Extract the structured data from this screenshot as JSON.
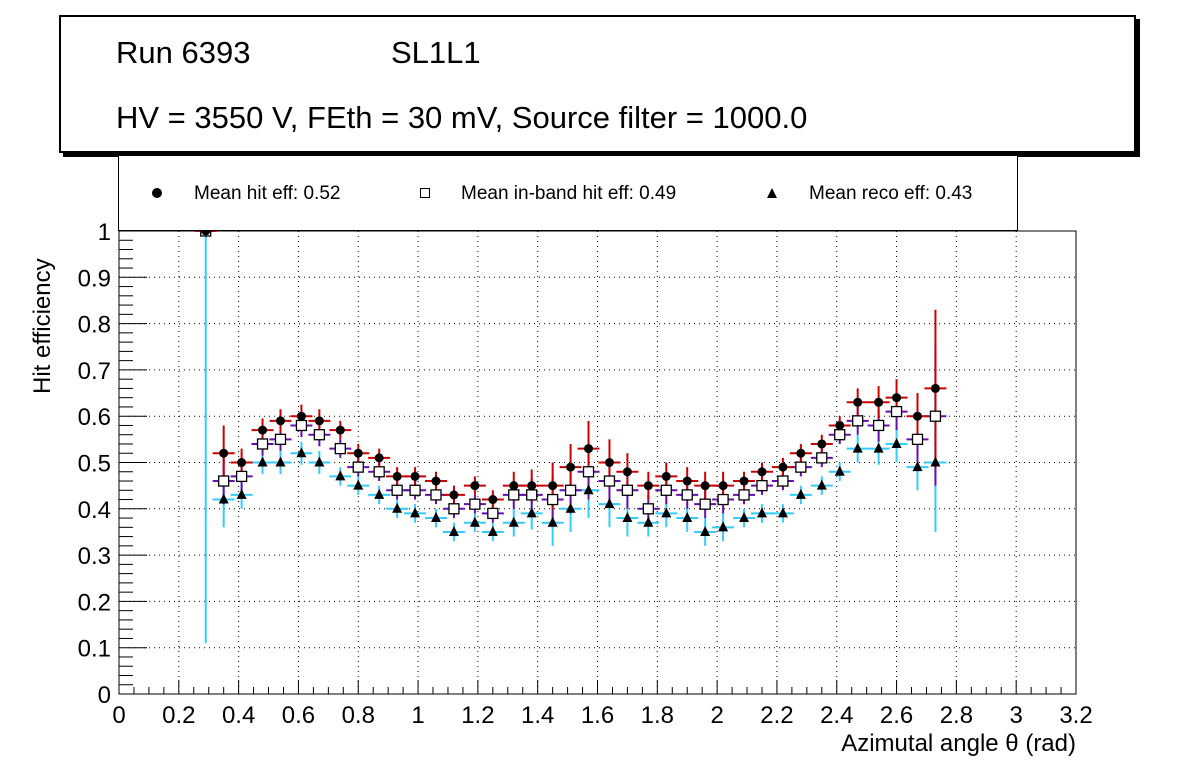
{
  "header": {
    "run": "Run 6393",
    "layer": "SL1L1",
    "conditions": "HV = 3550 V, FEth = 30 mV, Source filter = 1000.0"
  },
  "legend": {
    "hit": "Mean hit  eff: 0.52",
    "inband": "Mean in-band hit eff: 0.49",
    "reco": "Mean reco eff: 0.43"
  },
  "colors": {
    "hit_err": "#cc0000",
    "inband_err": "#6a0dad",
    "reco_err": "#33ccff",
    "marker": "#000000"
  },
  "chart_data": {
    "type": "scatter",
    "title": "",
    "xlabel": "Azimutal angle θ (rad)",
    "ylabel": "Hit efficiency",
    "xlim": [
      0,
      3.2
    ],
    "ylim": [
      0,
      1
    ],
    "grid": true,
    "x_ticks": [
      "0",
      "0.2",
      "0.4",
      "0.6",
      "0.8",
      "1",
      "1.2",
      "1.4",
      "1.6",
      "1.8",
      "2",
      "2.2",
      "2.4",
      "2.6",
      "2.8",
      "3",
      "3.2"
    ],
    "y_ticks": [
      "0",
      "0.1",
      "0.2",
      "0.3",
      "0.4",
      "0.5",
      "0.6",
      "0.7",
      "0.8",
      "0.9",
      "1"
    ],
    "x": [
      0.29,
      0.35,
      0.41,
      0.48,
      0.54,
      0.61,
      0.67,
      0.74,
      0.8,
      0.87,
      0.93,
      0.99,
      1.06,
      1.12,
      1.19,
      1.25,
      1.32,
      1.38,
      1.45,
      1.51,
      1.57,
      1.64,
      1.7,
      1.77,
      1.83,
      1.9,
      1.96,
      2.02,
      2.09,
      2.15,
      2.22,
      2.28,
      2.35,
      2.41,
      2.47,
      2.54,
      2.6,
      2.67,
      2.73
    ],
    "series": [
      {
        "name": "Mean hit eff",
        "values": [
          1.0,
          0.52,
          0.5,
          0.57,
          0.59,
          0.6,
          0.59,
          0.57,
          0.52,
          0.51,
          0.47,
          0.47,
          0.46,
          0.43,
          0.45,
          0.42,
          0.45,
          0.45,
          0.45,
          0.49,
          0.53,
          0.5,
          0.48,
          0.45,
          0.47,
          0.46,
          0.45,
          0.45,
          0.46,
          0.48,
          0.49,
          0.52,
          0.54,
          0.58,
          0.63,
          0.63,
          0.64,
          0.6,
          0.66
        ],
        "errors": [
          0.0,
          0.06,
          0.03,
          0.025,
          0.025,
          0.025,
          0.025,
          0.02,
          0.02,
          0.02,
          0.02,
          0.02,
          0.02,
          0.02,
          0.02,
          0.02,
          0.03,
          0.035,
          0.05,
          0.05,
          0.06,
          0.05,
          0.04,
          0.03,
          0.03,
          0.03,
          0.03,
          0.03,
          0.02,
          0.02,
          0.02,
          0.02,
          0.02,
          0.02,
          0.03,
          0.035,
          0.04,
          0.05,
          0.17
        ]
      },
      {
        "name": "Mean in-band hit eff",
        "values": [
          1.0,
          0.46,
          0.47,
          0.54,
          0.55,
          0.58,
          0.56,
          0.53,
          0.49,
          0.48,
          0.44,
          0.44,
          0.43,
          0.4,
          0.41,
          0.39,
          0.43,
          0.43,
          0.42,
          0.44,
          0.48,
          0.46,
          0.44,
          0.4,
          0.44,
          0.43,
          0.41,
          0.42,
          0.43,
          0.45,
          0.46,
          0.49,
          0.51,
          0.56,
          0.59,
          0.58,
          0.61,
          0.55,
          0.6
        ],
        "errors": [
          0.0,
          0.05,
          0.03,
          0.025,
          0.025,
          0.025,
          0.025,
          0.02,
          0.02,
          0.02,
          0.02,
          0.02,
          0.02,
          0.02,
          0.02,
          0.02,
          0.03,
          0.035,
          0.05,
          0.05,
          0.06,
          0.05,
          0.04,
          0.03,
          0.03,
          0.03,
          0.03,
          0.03,
          0.02,
          0.02,
          0.02,
          0.02,
          0.02,
          0.02,
          0.03,
          0.035,
          0.04,
          0.05,
          0.15
        ]
      },
      {
        "name": "Mean reco eff",
        "values": [
          1.0,
          0.42,
          0.43,
          0.5,
          0.5,
          0.52,
          0.5,
          0.47,
          0.45,
          0.43,
          0.4,
          0.39,
          0.38,
          0.35,
          0.37,
          0.35,
          0.37,
          0.39,
          0.37,
          0.4,
          0.44,
          0.41,
          0.38,
          0.37,
          0.39,
          0.38,
          0.35,
          0.36,
          0.38,
          0.39,
          0.39,
          0.43,
          0.45,
          0.48,
          0.53,
          0.53,
          0.54,
          0.49,
          0.5
        ],
        "errors": [
          0.89,
          0.06,
          0.03,
          0.025,
          0.025,
          0.025,
          0.025,
          0.02,
          0.02,
          0.02,
          0.02,
          0.02,
          0.02,
          0.02,
          0.02,
          0.02,
          0.03,
          0.035,
          0.05,
          0.05,
          0.06,
          0.05,
          0.04,
          0.03,
          0.03,
          0.03,
          0.03,
          0.03,
          0.02,
          0.02,
          0.02,
          0.02,
          0.02,
          0.02,
          0.03,
          0.035,
          0.04,
          0.05,
          0.15
        ]
      }
    ]
  }
}
